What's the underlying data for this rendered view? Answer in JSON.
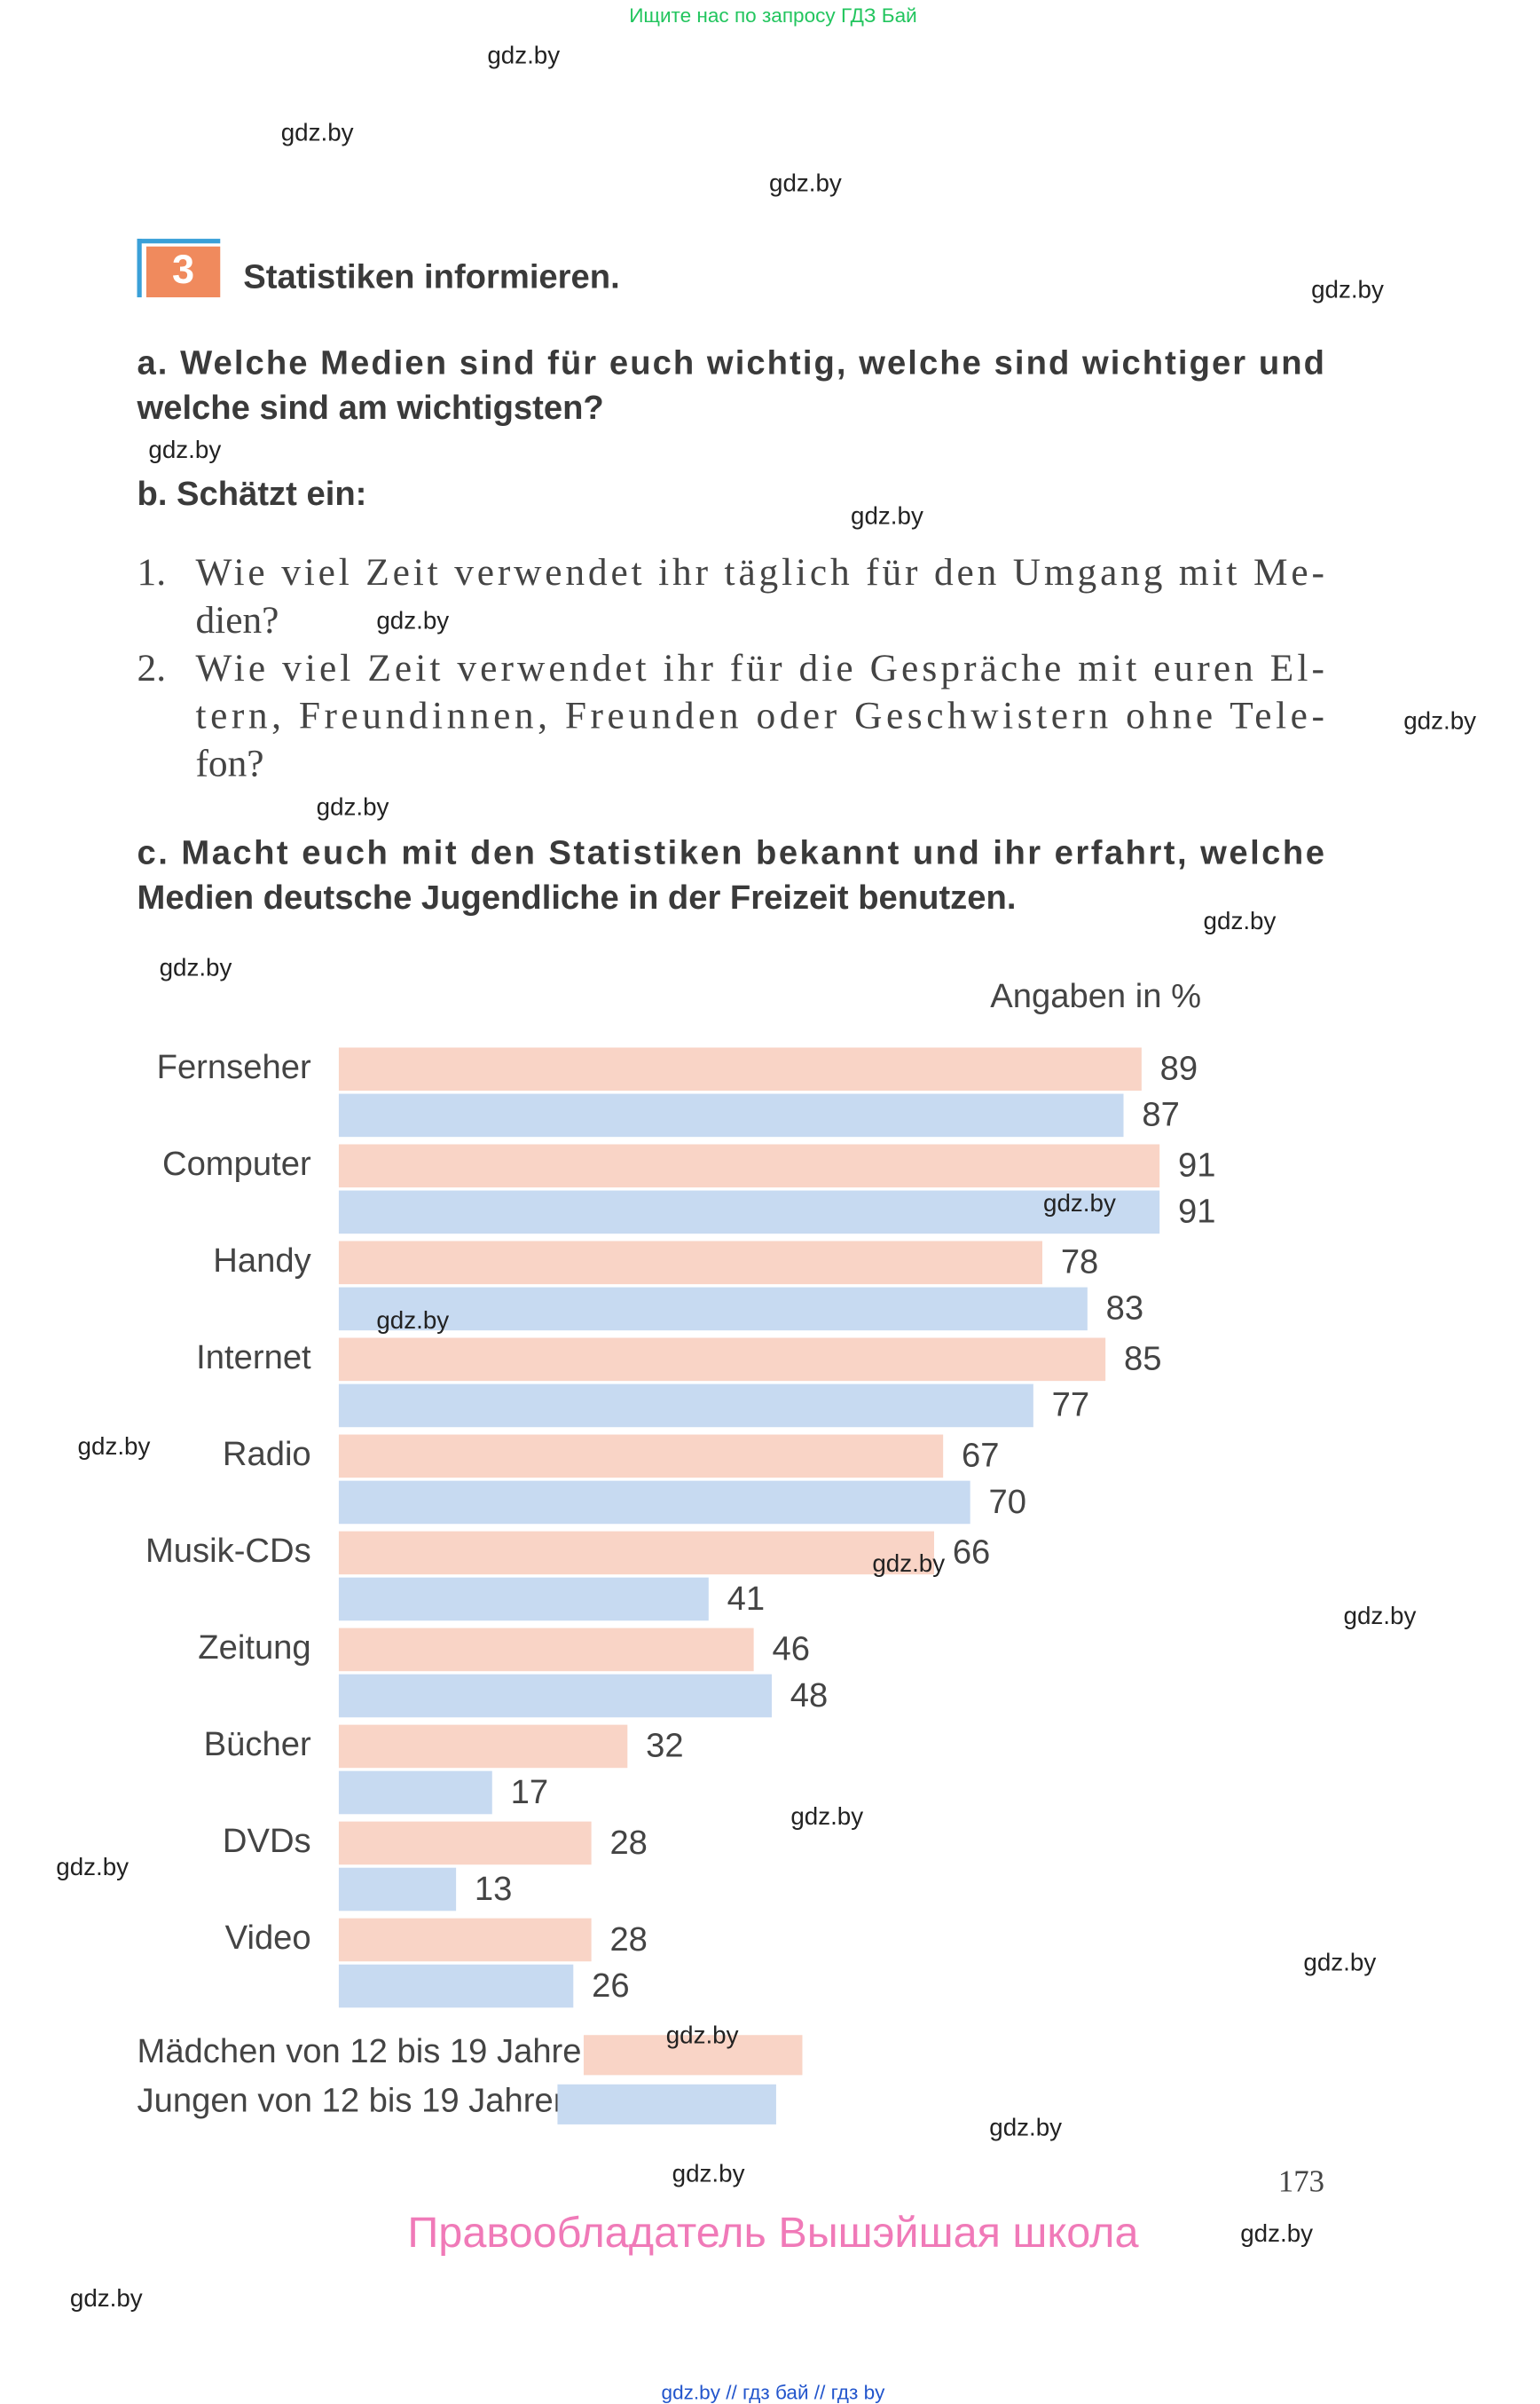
{
  "header": {
    "banner": "Ищите нас по запросу ГДЗ Бай"
  },
  "exercise": {
    "number": "3",
    "title": "Statistiken informieren.",
    "task_a": [
      "a. Welche Medien sind für euch wichtig, welche sind wichtiger und",
      "welche sind am wichtigsten?"
    ],
    "task_b": "b. Schätzt ein:",
    "questions": [
      {
        "number": "1.",
        "lines": [
          "Wie viel Zeit verwendet ihr täglich für den Umgang mit Me-",
          "dien?"
        ]
      },
      {
        "number": "2.",
        "lines": [
          "Wie viel Zeit verwendet ihr für die Gespräche mit euren El-",
          "tern, Freundinnen, Freunden oder Geschwistern ohne Tele-",
          "fon?"
        ]
      }
    ],
    "task_c": [
      "c. Macht euch mit den Statistiken bekannt und ihr erfahrt, welche",
      "Medien deutsche Jugendliche in der Freizeit benutzen."
    ]
  },
  "chart_data": {
    "type": "bar",
    "orientation": "horizontal",
    "unit_note": "Angaben in %",
    "categories": [
      "Fernseher",
      "Computer",
      "Handy",
      "Internet",
      "Radio",
      "Musik-CDs",
      "Zeitung",
      "Bücher",
      "DVDs",
      "Video"
    ],
    "series": [
      {
        "name": "Mädchen von 12 bis 19 Jahren",
        "color": "#f9d4c6",
        "values": [
          89,
          91,
          78,
          85,
          67,
          66,
          46,
          32,
          28,
          28
        ]
      },
      {
        "name": "Jungen von 12 bis 19 Jahren",
        "color": "#c7daf1",
        "values": [
          87,
          91,
          83,
          77,
          70,
          41,
          48,
          17,
          13,
          26
        ]
      }
    ]
  },
  "footer": {
    "page_number": "173",
    "copyright": "Правообладатель Вышэйшая школа",
    "links": "gdz.by // гдз бай // гдз by"
  },
  "watermarks": [
    "gdz.by",
    "gdz.by",
    "gdz.by",
    "gdz.by",
    "gdz.by",
    "gdz.by",
    "gdz.by",
    "gdz.by",
    "gdz.by",
    "gdz.by",
    "gdz.by",
    "gdz.by",
    "gdz.by",
    "gdz.by",
    "gdz.by",
    "gdz.by",
    "gdz.by",
    "gdz.by",
    "gdz.by",
    "gdz.by",
    "gdz.by",
    "gdz.by",
    "gdz.by",
    "gdz.by"
  ]
}
